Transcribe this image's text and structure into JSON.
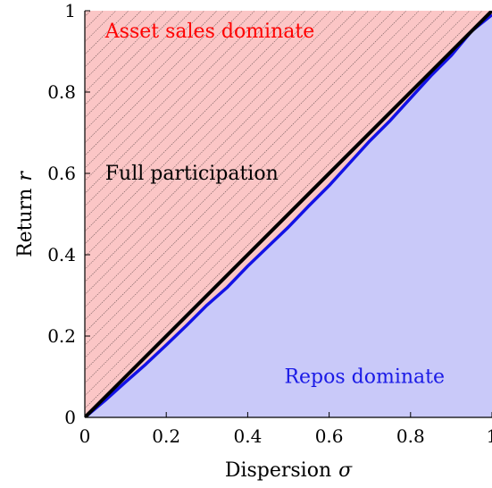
{
  "chart_data": {
    "type": "area",
    "xlabel": "Dispersion",
    "xlabel_symbol": "σ",
    "ylabel": "Return",
    "ylabel_symbol": "r",
    "xlim": [
      0,
      1
    ],
    "ylim": [
      0,
      1
    ],
    "xticks": [
      0,
      0.2,
      0.4,
      0.6,
      0.8,
      1
    ],
    "yticks": [
      0,
      0.2,
      0.4,
      0.6,
      0.8,
      1
    ],
    "xtick_labels": [
      "0",
      "0.2",
      "0.4",
      "0.6",
      "0.8",
      "1"
    ],
    "ytick_labels": [
      "0",
      "0.2",
      "0.4",
      "0.6",
      "0.8",
      "1"
    ],
    "grid": false,
    "colors": {
      "asset_region": "#fbc6c6",
      "repo_region": "#c9c9f9",
      "diagonal_line": "#000000",
      "boundary_line": "#1212e6",
      "hatch": "#000000",
      "asset_label": "#ff0000",
      "repo_label": "#1a1ae6",
      "full_label": "#000000"
    },
    "series": [
      {
        "x": [
          0,
          1
        ],
        "y": [
          0,
          1
        ]
      },
      {
        "x": [
          0,
          0.05,
          0.1,
          0.15,
          0.2,
          0.25,
          0.3,
          0.35,
          0.4,
          0.45,
          0.5,
          0.55,
          0.6,
          0.65,
          0.7,
          0.75,
          0.8,
          0.85,
          0.9,
          0.95,
          1.0
        ],
        "y": [
          0,
          0.042,
          0.087,
          0.131,
          0.178,
          0.226,
          0.276,
          0.32,
          0.372,
          0.42,
          0.468,
          0.52,
          0.57,
          0.625,
          0.68,
          0.73,
          0.785,
          0.84,
          0.89,
          0.95,
          0.99
        ]
      }
    ],
    "regions": [
      {
        "label": "Asset sales dominate",
        "label_position": [
          0.05,
          0.95
        ]
      },
      {
        "label": "Full participation",
        "label_position": [
          0.05,
          0.6
        ]
      },
      {
        "label": "Repos dominate",
        "label_position": [
          0.49,
          0.1
        ]
      }
    ]
  }
}
